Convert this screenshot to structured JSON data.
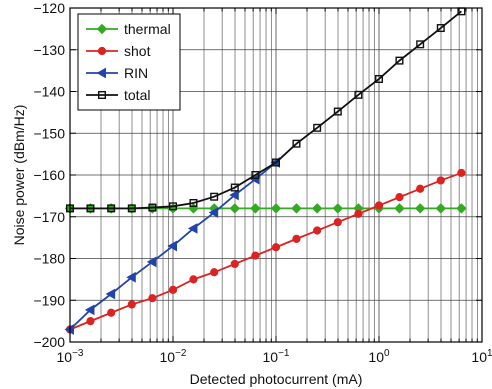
{
  "chart_data": {
    "type": "line",
    "xlabel": "Detected photocurrent (mA)",
    "ylabel": "Noise power (dBm/Hz)",
    "x_scale": "log",
    "xlim": [
      0.001,
      10
    ],
    "ylim": [
      -200,
      -120
    ],
    "x_major_ticks": [
      {
        "value": 0.001,
        "base": "10",
        "exp": "-3"
      },
      {
        "value": 0.01,
        "base": "10",
        "exp": "-2"
      },
      {
        "value": 0.1,
        "base": "10",
        "exp": "-1"
      },
      {
        "value": 1,
        "base": "10",
        "exp": "0"
      },
      {
        "value": 10,
        "base": "10",
        "exp": "1"
      }
    ],
    "y_ticks": [
      -200,
      -190,
      -180,
      -170,
      -160,
      -150,
      -140,
      -130,
      -120
    ],
    "grid": true,
    "legend_position": "top-left",
    "series": [
      {
        "name": "thermal",
        "color": "#33aa22",
        "marker": "diamond",
        "x": [
          0.001,
          0.00158,
          0.00251,
          0.00398,
          0.00631,
          0.01,
          0.0158,
          0.0251,
          0.0398,
          0.0631,
          0.1,
          0.158,
          0.251,
          0.398,
          0.631,
          1,
          1.58,
          2.51,
          3.98,
          6.31
        ],
        "y": [
          -168,
          -168,
          -168,
          -168,
          -168,
          -168,
          -168,
          -168,
          -168,
          -168,
          -168,
          -168,
          -168,
          -168,
          -168,
          -168,
          -168,
          -168,
          -168,
          -168
        ]
      },
      {
        "name": "shot",
        "color": "#dd2222",
        "marker": "circle",
        "x": [
          0.001,
          0.00158,
          0.00251,
          0.00398,
          0.00631,
          0.01,
          0.0158,
          0.0251,
          0.0398,
          0.0631,
          0.1,
          0.158,
          0.251,
          0.398,
          0.631,
          1,
          1.58,
          2.51,
          3.98,
          6.31
        ],
        "y": [
          -197,
          -195,
          -193,
          -191,
          -189.5,
          -187.5,
          -185,
          -183.3,
          -181.3,
          -179.3,
          -177.3,
          -175.3,
          -173.3,
          -171.3,
          -169.3,
          -167.3,
          -165.3,
          -163.3,
          -161.3,
          -159.5
        ]
      },
      {
        "name": "RIN",
        "color": "#2244aa",
        "marker": "triangle-left",
        "x": [
          0.001,
          0.00158,
          0.00251,
          0.00398,
          0.00631,
          0.01,
          0.0158,
          0.0251,
          0.0398,
          0.0631,
          0.1
        ],
        "y": [
          -197,
          -192.3,
          -188.5,
          -184.5,
          -180.8,
          -177,
          -172.8,
          -169,
          -164.8,
          -161,
          -157
        ]
      },
      {
        "name": "total",
        "color": "#111111",
        "marker": "square",
        "x": [
          0.001,
          0.00158,
          0.00251,
          0.00398,
          0.00631,
          0.01,
          0.0158,
          0.0251,
          0.0398,
          0.0631,
          0.1,
          0.158,
          0.251,
          0.398,
          0.631,
          1,
          1.58,
          2.51,
          3.98,
          6.31
        ],
        "y": [
          -168,
          -168,
          -168,
          -168,
          -167.8,
          -167.5,
          -166.7,
          -165.2,
          -163,
          -160,
          -157,
          -152.5,
          -148.7,
          -144.8,
          -140.8,
          -137,
          -132.6,
          -128.7,
          -124.8,
          -120.8
        ]
      }
    ]
  }
}
